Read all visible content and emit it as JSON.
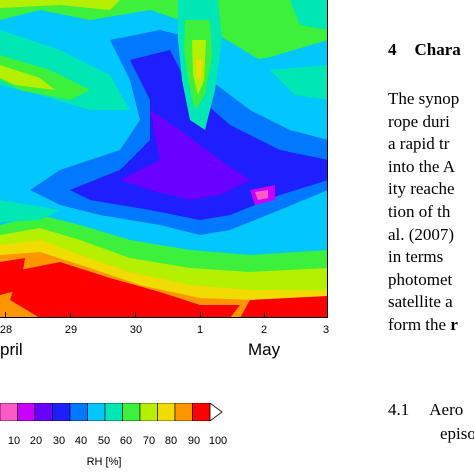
{
  "figure": {
    "x_ticks": [
      "28",
      "29",
      "30",
      "1",
      "2",
      "3"
    ],
    "months": [
      "pril",
      "May"
    ],
    "colorbar": {
      "title": "RH [%]",
      "tick_labels": [
        "10",
        "20",
        "30",
        "40",
        "50",
        "60",
        "70",
        "80",
        "90",
        "100"
      ],
      "colors": [
        "#ff5ac8",
        "#c800ff",
        "#6a00ff",
        "#1e1eff",
        "#0078ff",
        "#00c8ff",
        "#00e6b4",
        "#3cf03c",
        "#b4f000",
        "#f0dc00",
        "#ff9600",
        "#ff0000"
      ]
    }
  },
  "text": {
    "section_number": "4",
    "section_title": "Chara",
    "paragraph_lines": [
      "The synop",
      "rope duri",
      "a rapid tr",
      "into the A",
      "ity reache",
      "tion of th",
      "al. (2007)",
      "in terms",
      "photomet",
      "satellite a",
      "form the r"
    ],
    "subsection_number": "4.1",
    "subsection_title_line1": "Aero",
    "subsection_title_line2": "episo"
  }
}
